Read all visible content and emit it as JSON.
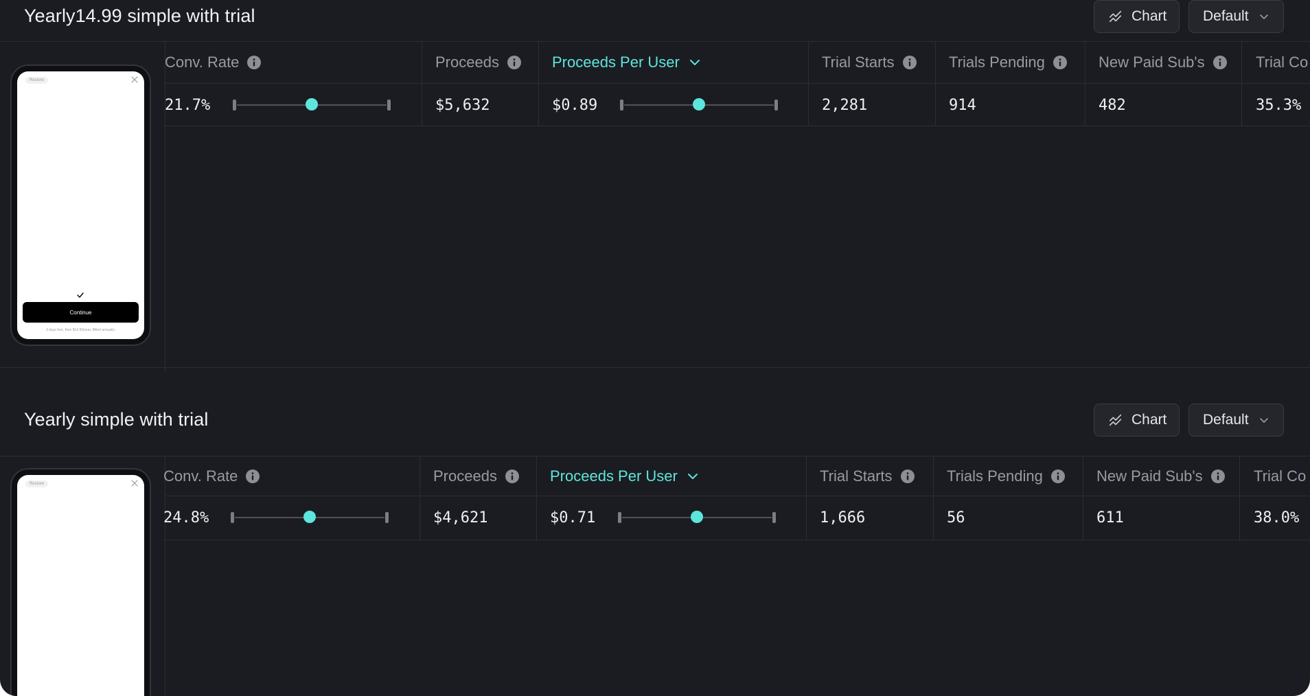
{
  "sections": [
    {
      "title": "Yearly14.99 simple with trial",
      "chart_button": "Chart",
      "default_button": "Default",
      "headers": {
        "conv_rate": "Conv. Rate",
        "proceeds": "Proceeds",
        "proceeds_per_user": "Proceeds Per User",
        "trial_starts": "Trial Starts",
        "trials_pending": "Trials Pending",
        "new_paid_subs": "New Paid Sub's",
        "trial_conv": "Trial Co"
      },
      "values": {
        "conv_rate": "21.7%",
        "proceeds": "$5,632",
        "proceeds_per_user": "$0.89",
        "trial_starts": "2,281",
        "trials_pending": "914",
        "new_paid_subs": "482",
        "trial_conv": "35.3%"
      },
      "conv_rate_slider_level": 0.5,
      "ppu_slider_level": 0.5,
      "phone": {
        "restore_label": "Restore",
        "continue_label": "Continue",
        "fineprint": "3 days free, then $14.99/year. Billed annually."
      }
    },
    {
      "title": "Yearly simple with trial",
      "chart_button": "Chart",
      "default_button": "Default",
      "headers": {
        "conv_rate": "Conv. Rate",
        "proceeds": "Proceeds",
        "proceeds_per_user": "Proceeds Per User",
        "trial_starts": "Trial Starts",
        "trials_pending": "Trials Pending",
        "new_paid_subs": "New Paid Sub's",
        "trial_conv": "Trial Co"
      },
      "values": {
        "conv_rate": "24.8%",
        "proceeds": "$4,621",
        "proceeds_per_user": "$0.71",
        "trial_starts": "1,666",
        "trials_pending": "56",
        "new_paid_subs": "611",
        "trial_conv": "38.0%"
      },
      "conv_rate_slider_level": 0.5,
      "ppu_slider_level": 0.5,
      "phone": {
        "restore_label": "Restore"
      }
    }
  ],
  "icons": {
    "chart": "chart-icon",
    "dropdown": "chevron-down-icon",
    "info": "info-icon",
    "close": "close-icon",
    "check": "check-icon"
  },
  "colors": {
    "background": "#1b1c21",
    "accent": "#5ce6dc",
    "header_text": "#9a9ba2",
    "value_text": "#f0f0f2"
  }
}
